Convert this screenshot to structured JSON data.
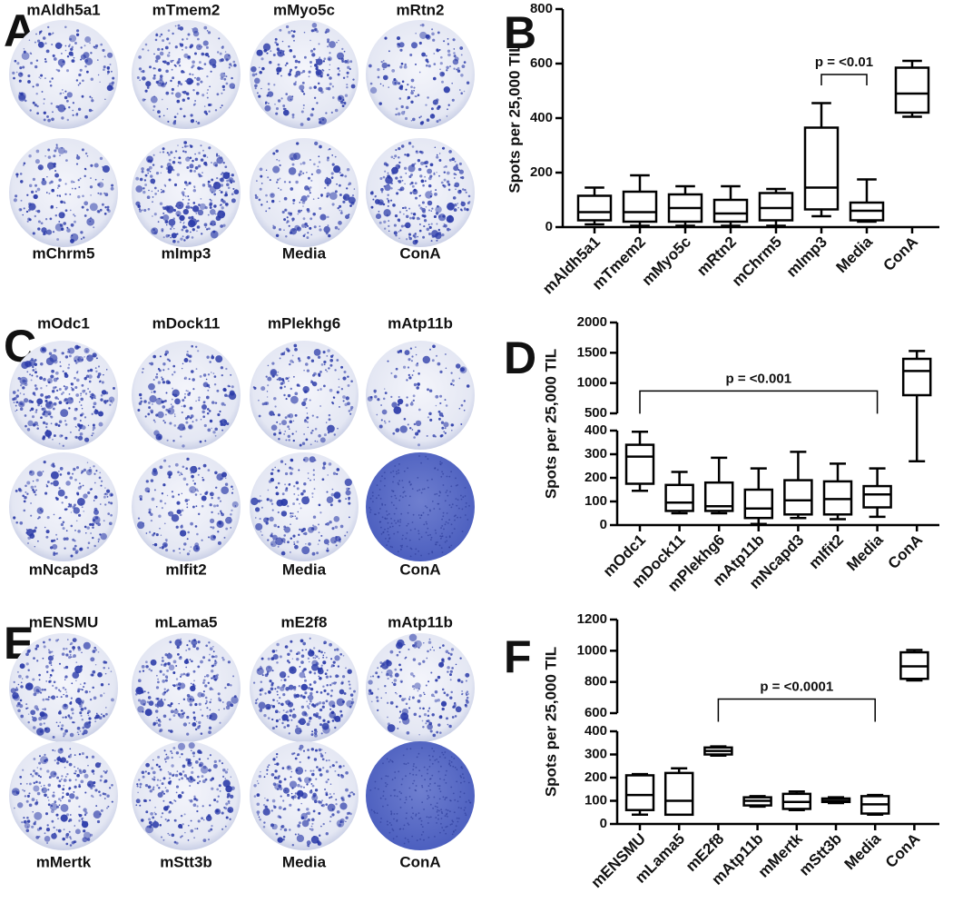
{
  "image_panels": [
    {
      "letter": "A",
      "top_labels": [
        "mAldh5a1",
        "mTmem2",
        "mMyo5c",
        "mRtn2"
      ],
      "bottom_labels": [
        "mChrm5",
        "mImp3",
        "Media",
        "ConA"
      ]
    },
    {
      "letter": "C",
      "top_labels": [
        "mOdc1",
        "mDock11",
        "mPlekhg6",
        "mAtp11b"
      ],
      "bottom_labels": [
        "mNcapd3",
        "mIfit2",
        "Media",
        "ConA"
      ]
    },
    {
      "letter": "E",
      "top_labels": [
        "mENSMU",
        "mLama5",
        "mE2f8",
        "mAtp11b"
      ],
      "bottom_labels": [
        "mMertk",
        "mStt3b",
        "Media",
        "ConA"
      ]
    }
  ],
  "chart_data": [
    {
      "type": "box",
      "panel_label": "B",
      "y_label": "Spots per 25,000 TIL",
      "color": "#000000",
      "categories": [
        "mAldh5a1",
        "mTmem2",
        "mMyo5c",
        "mRtn2",
        "mChrm5",
        "mImp3",
        "Media",
        "ConA"
      ],
      "boxes": [
        {
          "min": 10,
          "q1": 25,
          "median": 55,
          "q3": 115,
          "max": 145
        },
        {
          "min": 5,
          "q1": 20,
          "median": 55,
          "q3": 130,
          "max": 190
        },
        {
          "min": 5,
          "q1": 20,
          "median": 70,
          "q3": 120,
          "max": 150
        },
        {
          "min": 5,
          "q1": 20,
          "median": 50,
          "q3": 100,
          "max": 150
        },
        {
          "min": 5,
          "q1": 25,
          "median": 70,
          "q3": 125,
          "max": 140
        },
        {
          "min": 40,
          "q1": 65,
          "median": 145,
          "q3": 365,
          "max": 455
        },
        {
          "min": 20,
          "q1": 25,
          "median": 60,
          "q3": 90,
          "max": 175
        },
        {
          "min": 405,
          "q1": 420,
          "median": 490,
          "q3": 585,
          "max": 610
        }
      ],
      "ylim": [
        0,
        800
      ],
      "yticks": [
        0,
        200,
        400,
        600,
        800
      ],
      "annotations": [
        {
          "text": "p = <0.01",
          "from": 5,
          "to": 6,
          "y": 560
        }
      ]
    },
    {
      "type": "box",
      "panel_label": "D",
      "y_label": "Spots per 25,000 TIL",
      "color": "#000000",
      "categories": [
        "mOdc1",
        "mDock11",
        "mPlekhg6",
        "mAtp11b",
        "mNcapd3",
        "mIfit2",
        "Media",
        "ConA"
      ],
      "boxes": [
        {
          "min": 145,
          "q1": 175,
          "median": 290,
          "q3": 340,
          "max": 395
        },
        {
          "min": 50,
          "q1": 60,
          "median": 95,
          "q3": 170,
          "max": 225
        },
        {
          "min": 50,
          "q1": 60,
          "median": 80,
          "q3": 180,
          "max": 285
        },
        {
          "min": 5,
          "q1": 30,
          "median": 70,
          "q3": 150,
          "max": 240
        },
        {
          "min": 30,
          "q1": 45,
          "median": 105,
          "q3": 190,
          "max": 310
        },
        {
          "min": 25,
          "q1": 45,
          "median": 110,
          "q3": 185,
          "max": 260
        },
        {
          "min": 35,
          "q1": 75,
          "median": 130,
          "q3": 165,
          "max": 240
        },
        {
          "min": 270,
          "q1": 800,
          "median": 1200,
          "q3": 1400,
          "max": 1530
        }
      ],
      "ylim": [
        0,
        2000
      ],
      "axis_break": [
        400,
        500
      ],
      "yticks": [
        0,
        100,
        200,
        300,
        400,
        500,
        1000,
        1500,
        2000
      ],
      "annotations": [
        {
          "text": "p = <0.001",
          "from": 0,
          "to": 6,
          "y": 870
        }
      ]
    },
    {
      "type": "box",
      "panel_label": "F",
      "y_label": "Spots per 25,000 TIL",
      "color": "#000000",
      "categories": [
        "mENSMU",
        "mLama5",
        "mE2f8",
        "mAtp11b",
        "mMertk",
        "mStt3b",
        "Media",
        "ConA"
      ],
      "boxes": [
        {
          "min": 40,
          "q1": 60,
          "median": 125,
          "q3": 210,
          "max": 215
        },
        {
          "min": 40,
          "q1": 40,
          "median": 100,
          "q3": 220,
          "max": 240
        },
        {
          "min": 295,
          "q1": 300,
          "median": 315,
          "q3": 330,
          "max": 335
        },
        {
          "min": 75,
          "q1": 80,
          "median": 100,
          "q3": 115,
          "max": 120
        },
        {
          "min": 60,
          "q1": 65,
          "median": 95,
          "q3": 130,
          "max": 140
        },
        {
          "min": 90,
          "q1": 95,
          "median": 100,
          "q3": 110,
          "max": 115
        },
        {
          "min": 40,
          "q1": 45,
          "median": 85,
          "q3": 120,
          "max": 125
        },
        {
          "min": 810,
          "q1": 820,
          "median": 900,
          "q3": 990,
          "max": 1005
        }
      ],
      "ylim": [
        0,
        1200
      ],
      "axis_break": [
        400,
        600
      ],
      "yticks": [
        0,
        100,
        200,
        300,
        400,
        600,
        800,
        1000,
        1200
      ],
      "annotations": [
        {
          "text": "p = <0.0001",
          "from": 2,
          "to": 6,
          "y": 690
        }
      ]
    }
  ]
}
